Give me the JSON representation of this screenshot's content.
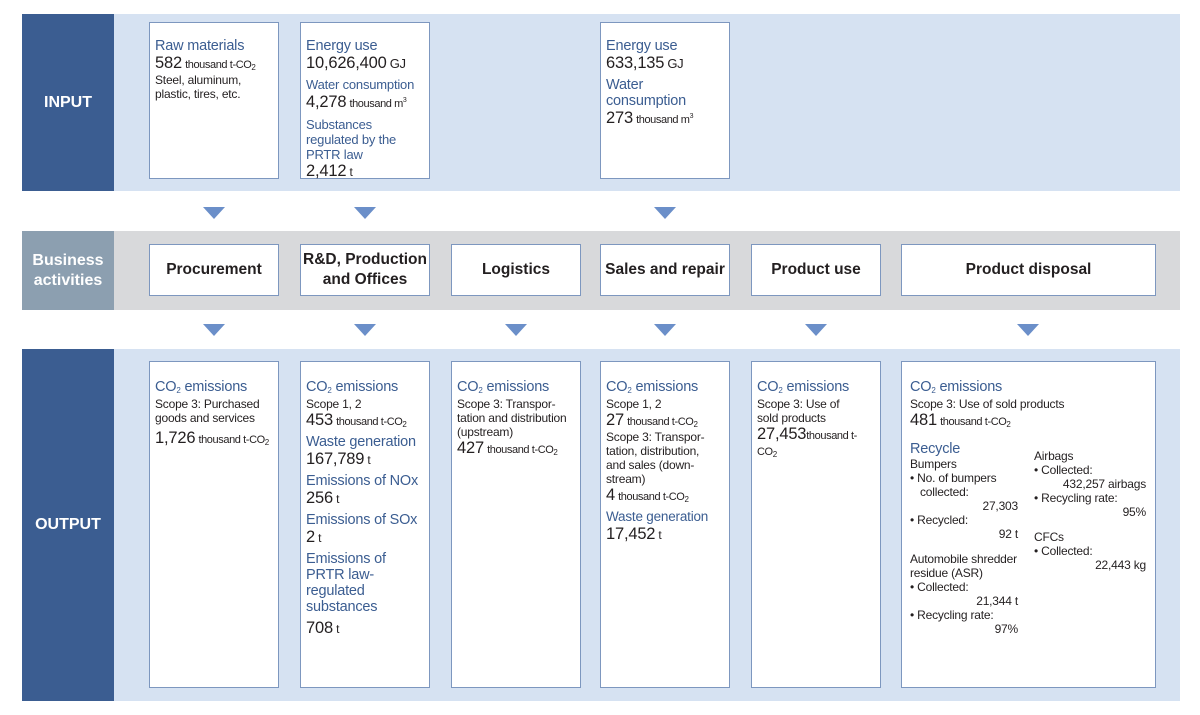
{
  "labels": {
    "input": "INPUT",
    "business": "Business activities",
    "output": "OUTPUT"
  },
  "input": {
    "procurement": {
      "title": "Raw materials",
      "value": "582",
      "unit": "thousand t-CO",
      "unit_sub": "2",
      "note": "Steel, aluminum, plastic, tires, etc."
    },
    "rd": {
      "energy_title": "Energy use",
      "energy_value": "10,626,400",
      "energy_unit": "GJ",
      "water_title": "Water consumption",
      "water_value": "4,278",
      "water_unit": "thousand m",
      "water_sup": "3",
      "prtr_title": "Substances regulated by the PRTR law",
      "prtr_value": "2,412",
      "prtr_unit": "t"
    },
    "sales": {
      "energy_title": "Energy use",
      "energy_value": "633,135",
      "energy_unit": "GJ",
      "water_title": "Water consumption",
      "water_value": "273",
      "water_unit": "thousand m",
      "water_sup": "3"
    }
  },
  "activities": [
    "Procurement",
    "R&D, Production and Offices",
    "Logistics",
    "Sales and repair",
    "Product use",
    "Product disposal"
  ],
  "output": {
    "co2_title": "CO",
    "co2_sub": "2",
    "co2_title_tail": " emissions",
    "tco2_unit": "thousand t-CO",
    "tco2_sub": "2",
    "procurement": {
      "scope": "Scope 3: Purchased goods and services",
      "value": "1,726"
    },
    "rd": {
      "scope": "Scope 1, 2",
      "co2_value": "453",
      "waste_title": "Waste generation",
      "waste_value": "167,789",
      "waste_unit": "t",
      "nox_title": "Emissions of NOx",
      "nox_value": "256",
      "nox_unit": "t",
      "sox_title": "Emissions of SOx",
      "sox_value": "2",
      "sox_unit": "t",
      "prtr_title": "Emissions of PRTR law-regulated substances",
      "prtr_value": "708",
      "prtr_unit": "t"
    },
    "logistics": {
      "scope": "Scope 3: Transpor- tation and distribution (upstream)",
      "value": "427"
    },
    "sales": {
      "scope12": "Scope 1, 2",
      "value12": "27",
      "scope3": "Scope 3: Transpor- tation, distribution, and sales (down- stream)",
      "value3": "4",
      "waste_title": "Waste generation",
      "waste_value": "17,452",
      "waste_unit": "t"
    },
    "use": {
      "scope": "Scope 3: Use of sold products",
      "value": "27,453"
    },
    "disposal": {
      "scope": "Scope 3: Use of sold products",
      "value": "481",
      "recycle_title": "Recycle",
      "bumpers_title": "Bumpers",
      "bumpers_collected_label": "• No. of bumpers collected:",
      "bumpers_collected_value": "27,303",
      "bumpers_recycled_label": "• Recycled:",
      "bumpers_recycled_value": "92 t",
      "asr_title": "Automobile shredder residue (ASR)",
      "asr_collected_label": "• Collected:",
      "asr_collected_value": "21,344 t",
      "asr_rate_label": "• Recycling rate:",
      "asr_rate_value": "97%",
      "airbags_title": "Airbags",
      "airbags_collected_label": "• Collected:",
      "airbags_collected_value": "432,257 airbags",
      "airbags_rate_label": "• Recycling rate:",
      "airbags_rate_value": "95%",
      "cfcs_title": "CFCs",
      "cfcs_collected_label": "• Collected:",
      "cfcs_collected_value": "22,443 kg"
    }
  },
  "colors": {
    "side_dark": "#3b5d91",
    "side_gray": "#8c9fb0",
    "band_blue": "#d6e2f2",
    "band_gray": "#d8d9db",
    "accent_text": "#3b5d91",
    "arrow": "#6b8fc9"
  }
}
